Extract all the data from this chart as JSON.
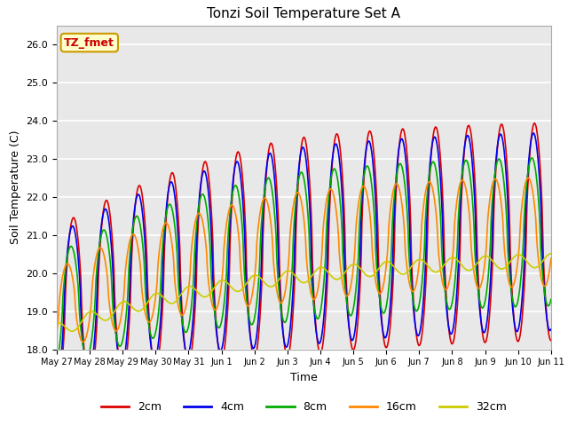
{
  "title": "Tonzi Soil Temperature Set A",
  "xlabel": "Time",
  "ylabel": "Soil Temperature (C)",
  "ylim": [
    18.0,
    26.5
  ],
  "yticks": [
    18.0,
    19.0,
    20.0,
    21.0,
    22.0,
    23.0,
    24.0,
    25.0,
    26.0
  ],
  "annotation_text": "TZ_fmet",
  "annotation_bg": "#ffffcc",
  "annotation_border": "#cc9900",
  "bg_color": "#e8e8e8",
  "line_colors": {
    "2cm": "#dd0000",
    "4cm": "#0000ee",
    "8cm": "#00aa00",
    "16cm": "#ff8800",
    "32cm": "#cccc00"
  },
  "legend_labels": [
    "2cm",
    "4cm",
    "8cm",
    "16cm",
    "32cm"
  ],
  "xtick_labels": [
    "May 27",
    "May 28",
    "May 29",
    "May 30",
    "May 31",
    "Jun 1",
    "Jun 2",
    "Jun 3",
    "Jun 4",
    "Jun 5",
    "Jun 6",
    "Jun 7",
    "Jun 8",
    "Jun 9",
    "Jun 10",
    "Jun 11"
  ],
  "n_days": 15,
  "pts_per_day": 48
}
